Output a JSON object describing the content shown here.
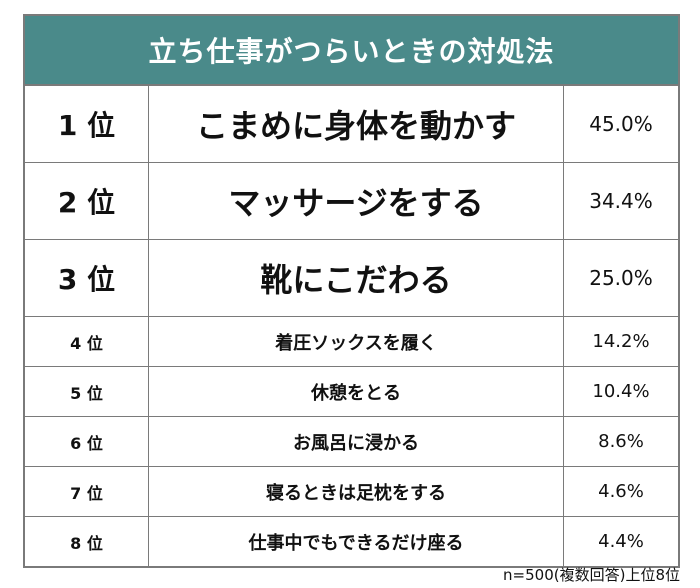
{
  "title": "立ち仕事がつらいときの対処法",
  "rows": [
    {
      "rank": "1 位",
      "item": "こまめに身体を動かす",
      "percent": "45.0%"
    },
    {
      "rank": "2 位",
      "item": "マッサージをする",
      "percent": "34.4%"
    },
    {
      "rank": "3 位",
      "item": "靴にこだわる",
      "percent": "25.0%"
    },
    {
      "rank": "4 位",
      "item": "着圧ソックスを履く",
      "percent": "14.2%"
    },
    {
      "rank": "5 位",
      "item": "休憩をとる",
      "percent": "10.4%"
    },
    {
      "rank": "6 位",
      "item": "お風呂に浸かる",
      "percent": "8.6%"
    },
    {
      "rank": "7 位",
      "item": "寝るときは足枕をする",
      "percent": "4.6%"
    },
    {
      "rank": "8 位",
      "item": "仕事中でもできるだけ座る",
      "percent": "4.4%"
    }
  ],
  "footnote": "n=500(複数回答)上位8位",
  "colors": {
    "header_bg": "#4a8a8a",
    "header_text": "#ffffff",
    "border": "#7a7a7a"
  }
}
